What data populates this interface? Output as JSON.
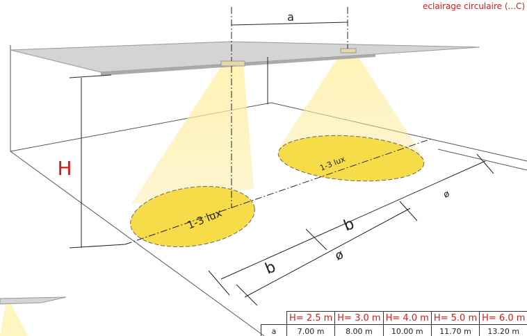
{
  "header": {
    "caption": "eclairage circulaire (...C)"
  },
  "labels": {
    "spacing": "a",
    "height": "H",
    "lux_left": "1-3 lux",
    "lux_right": "1-3 lux",
    "b_left": "b",
    "b_right": "b",
    "diameter_front": "ø",
    "diameter_side": "ø"
  },
  "table": {
    "header": [
      "",
      "H= 2.5 m",
      "H= 3.0 m",
      "H= 4.0 m",
      "H= 5.0 m",
      "H= 6.0 m"
    ],
    "rows": [
      [
        "a",
        "7.00 m",
        "8.00 m",
        "10.00 m",
        "11.70 m",
        "13.20 m"
      ]
    ]
  }
}
